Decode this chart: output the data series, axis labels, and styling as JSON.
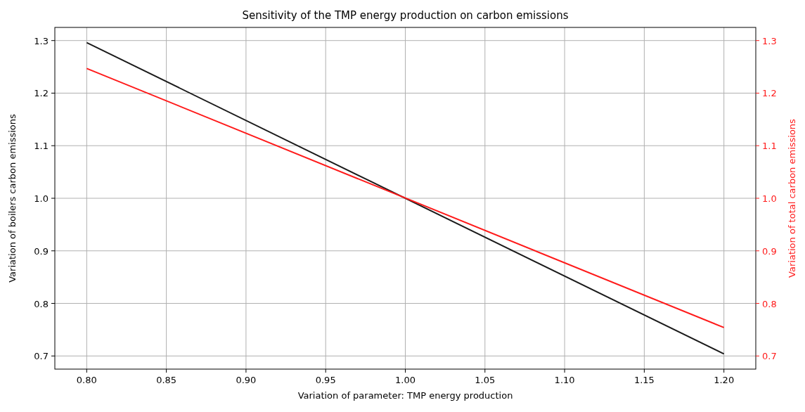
{
  "chart_data": {
    "type": "line",
    "title": "Sensitivity of the TMP energy production on carbon emissions",
    "xlabel": "Variation of parameter: TMP energy production",
    "ylabel": "Variation of boilers carbon emissions",
    "y2label": "Variation of total carbon emissions",
    "x": [
      0.8,
      1.2
    ],
    "series": [
      {
        "color": "#1a1a1a",
        "values": [
          1.296,
          0.704
        ]
      },
      {
        "color": "#ff1a1a",
        "values": [
          1.247,
          0.754
        ],
        "axis": "y2"
      }
    ],
    "xlim": [
      0.78,
      1.22
    ],
    "xticks": [
      {
        "value": 0.8,
        "label": "0.80"
      },
      {
        "value": 0.85,
        "label": "0.85"
      },
      {
        "value": 0.9,
        "label": "0.90"
      },
      {
        "value": 0.95,
        "label": "0.95"
      },
      {
        "value": 1,
        "label": "1.00"
      },
      {
        "value": 1.05,
        "label": "1.05"
      },
      {
        "value": 1.1,
        "label": "1.10"
      },
      {
        "value": 1.15,
        "label": "1.15"
      },
      {
        "value": 1.2,
        "label": "1.20"
      }
    ],
    "ylim": [
      0.675,
      1.325
    ],
    "yticks": [
      0.7,
      0.8,
      0.9,
      {
        "value": 1,
        "label": "1.0"
      },
      1.1,
      1.2,
      1.3
    ],
    "y2lim": [
      0.675,
      1.325
    ],
    "y2ticks": [
      0.7,
      0.8,
      0.9,
      {
        "value": 1,
        "label": "1.0"
      },
      1.1,
      1.2,
      1.3
    ],
    "grid": true,
    "marker": "none",
    "line_style": "solid"
  }
}
